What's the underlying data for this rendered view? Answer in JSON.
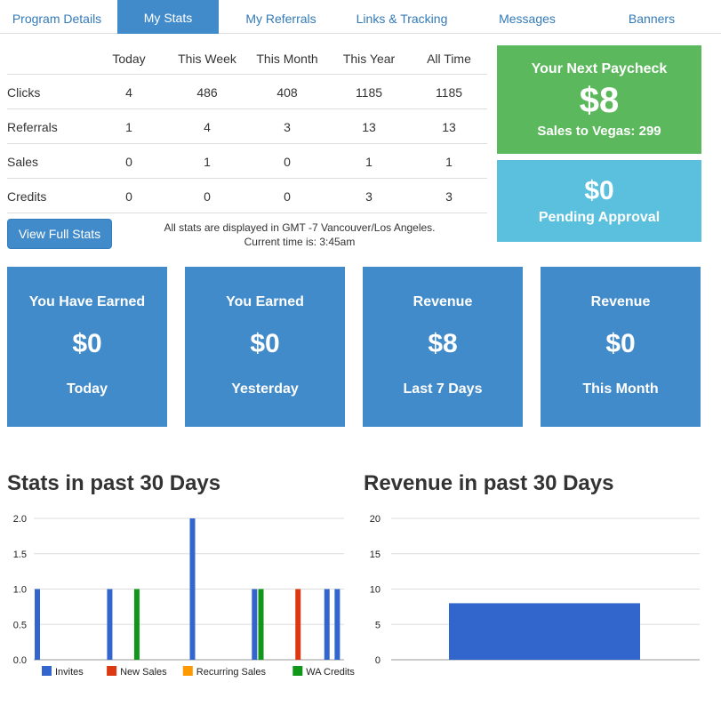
{
  "tabs": [
    {
      "label": "Program Details"
    },
    {
      "label": "My Stats"
    },
    {
      "label": "My Referrals"
    },
    {
      "label": "Links & Tracking"
    },
    {
      "label": "Messages"
    },
    {
      "label": "Banners"
    }
  ],
  "stats_table": {
    "columns": [
      "Today",
      "This Week",
      "This Month",
      "This Year",
      "All Time"
    ],
    "rows": [
      {
        "label": "Clicks",
        "values": [
          "4",
          "486",
          "408",
          "1185",
          "1185"
        ]
      },
      {
        "label": "Referrals",
        "values": [
          "1",
          "4",
          "3",
          "13",
          "13"
        ]
      },
      {
        "label": "Sales",
        "values": [
          "0",
          "1",
          "0",
          "1",
          "1"
        ]
      },
      {
        "label": "Credits",
        "values": [
          "0",
          "0",
          "0",
          "3",
          "3"
        ]
      }
    ]
  },
  "view_full_stats_label": "View Full Stats",
  "timezone_note": {
    "line1": "All stats are displayed in GMT -7 Vancouver/Los Angeles.",
    "line2": "Current time is: 3:45am"
  },
  "paycheck": {
    "title": "Your Next Paycheck",
    "amount": "$8",
    "subtitle": "Sales to Vegas: 299",
    "color": "#5cb85c"
  },
  "pending": {
    "amount": "$0",
    "label": "Pending Approval",
    "color": "#5bc0de"
  },
  "cards": [
    {
      "top": "You Have Earned",
      "value": "$0",
      "bottom": "Today"
    },
    {
      "top": "You Earned",
      "value": "$0",
      "bottom": "Yesterday"
    },
    {
      "top": "Revenue",
      "value": "$8",
      "bottom": "Last 7 Days"
    },
    {
      "top": "Revenue",
      "value": "$0",
      "bottom": "This Month"
    }
  ],
  "accent_color": "#428bca",
  "chart_data": [
    {
      "type": "bar",
      "title": "Stats in past 30 Days",
      "ylim": [
        0,
        2
      ],
      "yticks": [
        "0.0",
        "0.5",
        "1.0",
        "1.5",
        "2.0"
      ],
      "days": 30,
      "legend_position": "bottom",
      "series": [
        {
          "name": "Invites",
          "color": "#3366cc",
          "values": [
            1,
            0,
            0,
            0,
            0,
            0,
            0,
            1,
            0,
            0,
            0,
            0,
            0,
            0,
            0,
            2,
            0,
            0,
            0,
            0,
            0,
            1,
            0,
            0,
            0,
            0,
            0,
            0,
            1,
            1
          ]
        },
        {
          "name": "New Sales",
          "color": "#dc3912",
          "values": [
            0,
            0,
            0,
            0,
            0,
            0,
            0,
            0,
            0,
            0,
            0,
            0,
            0,
            0,
            0,
            0,
            0,
            0,
            0,
            0,
            0,
            0,
            0,
            0,
            0,
            1,
            0,
            0,
            0,
            0
          ]
        },
        {
          "name": "Recurring Sales",
          "color": "#ff9900",
          "values": [
            0,
            0,
            0,
            0,
            0,
            0,
            0,
            0,
            0,
            0,
            0,
            0,
            0,
            0,
            0,
            0,
            0,
            0,
            0,
            0,
            0,
            0,
            0,
            0,
            0,
            0,
            0,
            0,
            0,
            0
          ]
        },
        {
          "name": "WA Credits",
          "color": "#109618",
          "values": [
            0,
            0,
            0,
            0,
            0,
            0,
            0,
            0,
            0,
            1,
            0,
            0,
            0,
            0,
            0,
            0,
            0,
            0,
            0,
            0,
            0,
            1,
            0,
            0,
            0,
            0,
            0,
            0,
            0,
            0
          ]
        }
      ]
    },
    {
      "type": "bar",
      "title": "Revenue in past 30 Days",
      "ylim": [
        0,
        20
      ],
      "yticks": [
        "0",
        "5",
        "10",
        "15",
        "20"
      ],
      "values": [
        8
      ],
      "color": "#3366cc"
    }
  ]
}
